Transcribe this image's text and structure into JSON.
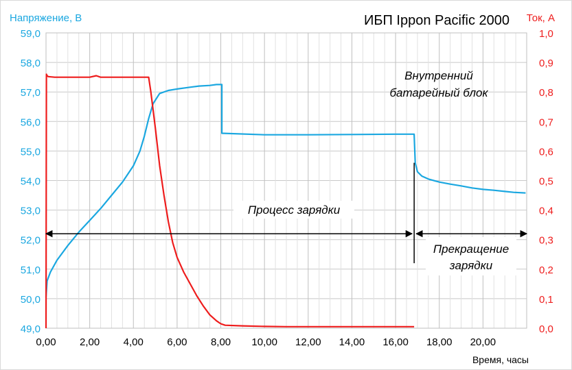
{
  "chart_data": {
    "type": "line",
    "title": "ИБП Ippon Pacific 2000",
    "xlabel": "Время, часы",
    "ylabel_left": "Напряжение, В",
    "ylabel_right": "Ток, А",
    "xlim": [
      0,
      22
    ],
    "ylim_left": [
      49,
      59
    ],
    "ylim_right": [
      0,
      1
    ],
    "grid": true,
    "x_ticks": [
      "0,00",
      "2,00",
      "4,00",
      "6,00",
      "8,00",
      "10,00",
      "12,00",
      "14,00",
      "16,00",
      "18,00",
      "20,00"
    ],
    "y_left_ticks": [
      "49,0",
      "50,0",
      "51,0",
      "52,0",
      "53,0",
      "54,0",
      "55,0",
      "56,0",
      "57,0",
      "58,0",
      "59,0"
    ],
    "y_right_ticks": [
      "0,0",
      "0,1",
      "0,2",
      "0,3",
      "0,4",
      "0,5",
      "0,6",
      "0,7",
      "0,8",
      "0,9",
      "1,0"
    ],
    "colors": {
      "voltage": "#1aa7e0",
      "current": "#ee1c1c",
      "grid": "#c8c8c8",
      "text": "#000000"
    },
    "series": [
      {
        "name": "Напряжение, В",
        "axis": "left",
        "x": [
          0,
          0.05,
          0.2,
          0.5,
          1.0,
          1.5,
          2.0,
          2.5,
          3.0,
          3.5,
          4.0,
          4.3,
          4.5,
          4.7,
          4.9,
          5.2,
          5.6,
          6.0,
          6.5,
          7.0,
          7.5,
          7.8,
          8.05,
          8.05,
          10,
          12,
          14,
          16,
          16.85,
          16.9,
          17.0,
          17.2,
          17.5,
          18.0,
          18.5,
          19.0,
          19.5,
          20.0,
          20.5,
          21.0,
          21.4,
          21.95
        ],
        "y": [
          50.05,
          50.6,
          50.9,
          51.3,
          51.8,
          52.25,
          52.65,
          53.05,
          53.5,
          53.95,
          54.5,
          55.0,
          55.5,
          56.1,
          56.6,
          56.95,
          57.05,
          57.1,
          57.15,
          57.2,
          57.22,
          57.25,
          57.25,
          55.6,
          55.55,
          55.55,
          55.56,
          55.57,
          55.57,
          54.6,
          54.3,
          54.15,
          54.05,
          53.95,
          53.88,
          53.82,
          53.75,
          53.7,
          53.67,
          53.63,
          53.6,
          53.58
        ]
      },
      {
        "name": "Ток, А",
        "axis": "right",
        "x": [
          0,
          0.02,
          0.05,
          0.1,
          0.4,
          1.0,
          1.5,
          2.0,
          2.3,
          2.5,
          3.0,
          3.5,
          4.0,
          4.5,
          4.7,
          4.8,
          5.0,
          5.2,
          5.4,
          5.6,
          5.8,
          6.0,
          6.3,
          6.6,
          6.9,
          7.2,
          7.5,
          7.8,
          8.0,
          8.2,
          9,
          10,
          11,
          12,
          13,
          14,
          15,
          16,
          16.85
        ],
        "y": [
          0,
          0.86,
          0.855,
          0.852,
          0.85,
          0.85,
          0.85,
          0.85,
          0.855,
          0.85,
          0.85,
          0.85,
          0.85,
          0.85,
          0.85,
          0.8,
          0.68,
          0.55,
          0.45,
          0.36,
          0.29,
          0.24,
          0.19,
          0.15,
          0.11,
          0.075,
          0.045,
          0.025,
          0.015,
          0.01,
          0.008,
          0.006,
          0.005,
          0.005,
          0.005,
          0.005,
          0.005,
          0.005,
          0.005
        ]
      }
    ],
    "annotations": {
      "internal_battery": [
        "Внутренний",
        "батарейный блок"
      ],
      "charging": "Процесс зарядки",
      "stop_charging": [
        "Прекращение",
        "зарядки"
      ]
    }
  }
}
